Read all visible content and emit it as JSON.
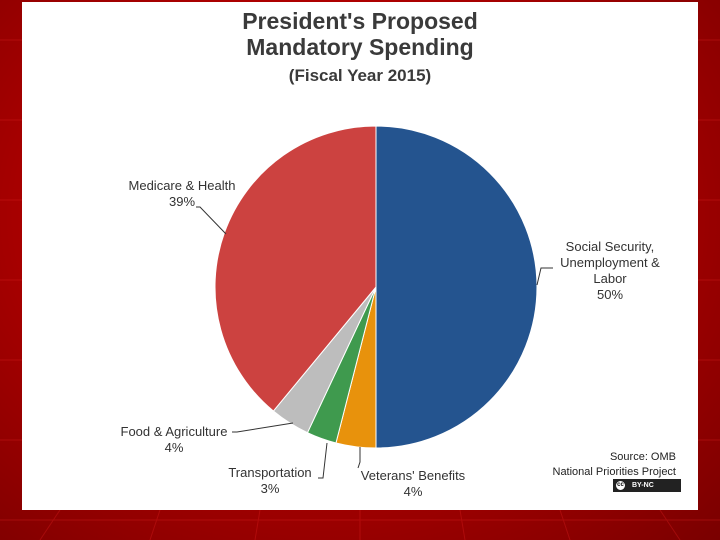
{
  "chart_data": {
    "type": "pie",
    "title_line1": "President's Proposed",
    "title_line2": "Mandatory Spending",
    "subtitle": "(Fiscal Year 2015)",
    "slices": [
      {
        "name": "Social Security, Unemployment & Labor",
        "value": 50,
        "label": "50%",
        "color": "#24548f"
      },
      {
        "name": "Veterans' Benefits",
        "value": 4,
        "label": "4%",
        "color": "#e8920c"
      },
      {
        "name": "Transportation",
        "value": 3,
        "label": "3%",
        "color": "#3f9a4e"
      },
      {
        "name": "Food & Agriculture",
        "value": 4,
        "label": "4%",
        "color": "#bdbdbd"
      },
      {
        "name": "Medicare & Health",
        "value": 39,
        "label": "39%",
        "color": "#cc4240"
      }
    ],
    "unit": "%"
  },
  "labels": {
    "social_line1": "Social Security,",
    "social_line2": "Unemployment &",
    "social_line3": "Labor",
    "veterans": "Veterans' Benefits",
    "transportation": "Transportation",
    "food": "Food & Agriculture",
    "medicare": "Medicare & Health"
  },
  "source": {
    "line1": "Source: OMB",
    "line2": "National Priorities Project",
    "license": "BY-NC",
    "license_symbol": "cc"
  }
}
